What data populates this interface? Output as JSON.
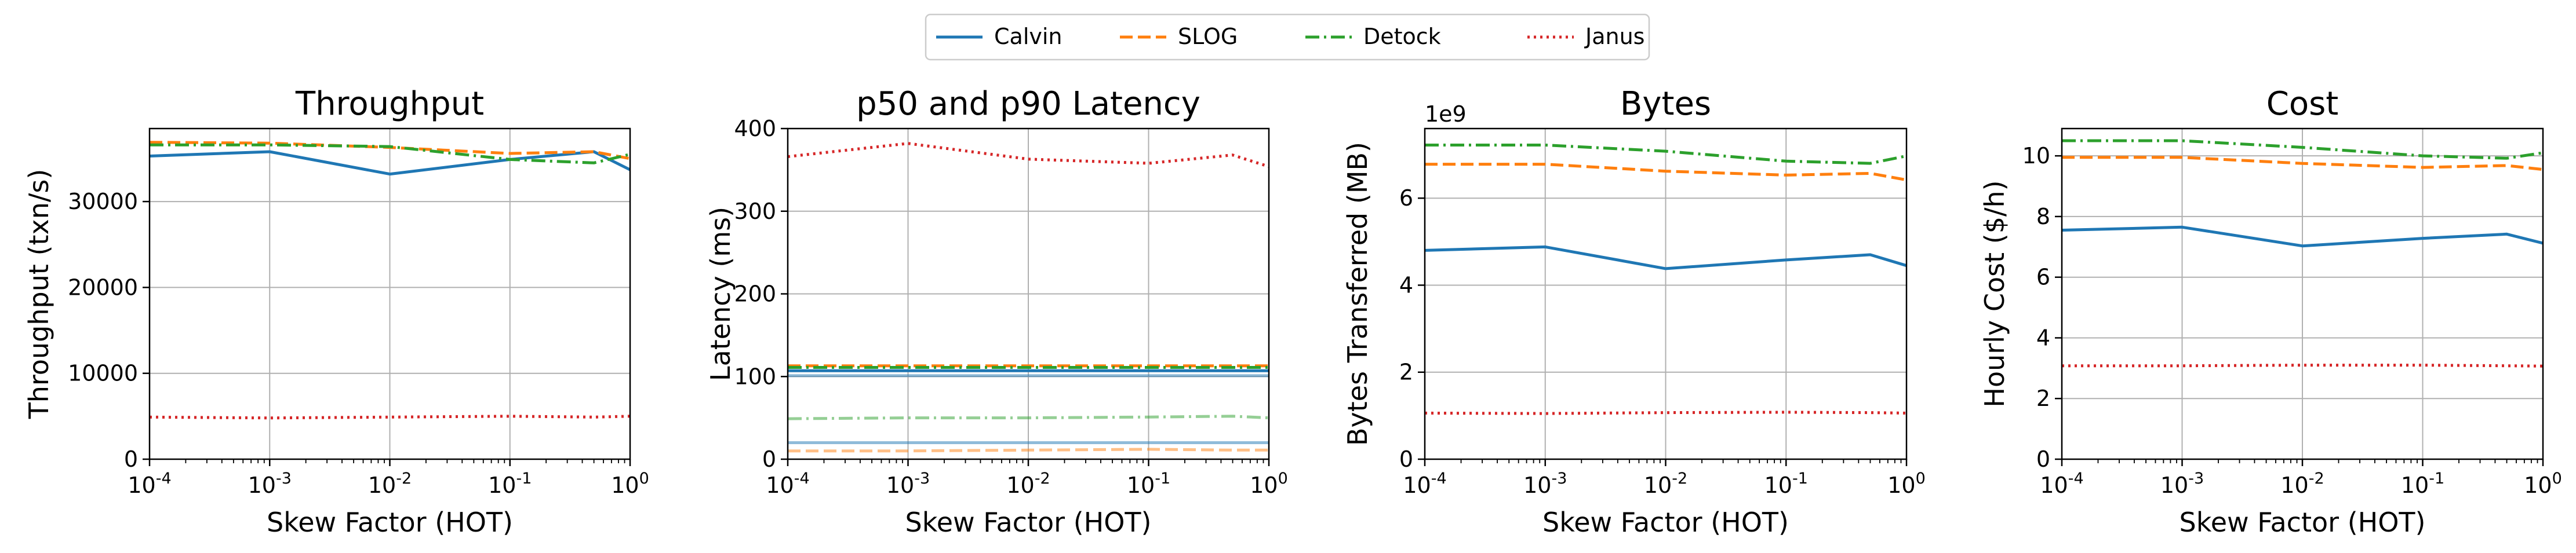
{
  "legend": {
    "placement": "top-center",
    "entries": [
      {
        "name": "Calvin",
        "color": "#1f77b4",
        "dash": "solid"
      },
      {
        "name": "SLOG",
        "color": "#ff7f0e",
        "dash": "dashed"
      },
      {
        "name": "Detock",
        "color": "#2ca02c",
        "dash": "dashdot"
      },
      {
        "name": "Janus",
        "color": "#d62728",
        "dash": "dotted"
      }
    ]
  },
  "chart_data": [
    {
      "type": "line",
      "title": "Throughput",
      "xlabel": "Skew Factor (HOT)",
      "ylabel": "Throughput (txn/s)",
      "xscale": "log",
      "xlim": [
        0.0001,
        1
      ],
      "xticks": [
        "10^-4",
        "10^-3",
        "10^-2",
        "10^-1",
        "10^0"
      ],
      "ylim": [
        0,
        38500
      ],
      "yticks": [
        0,
        10000,
        20000,
        30000
      ],
      "grid": true,
      "x": [
        0.0001,
        0.001,
        0.01,
        0.1,
        0.5,
        1
      ],
      "series": [
        {
          "name": "Calvin",
          "values": [
            35300,
            35800,
            33200,
            34900,
            35800,
            33700
          ]
        },
        {
          "name": "SLOG",
          "values": [
            36900,
            36800,
            36300,
            35600,
            35800,
            35000
          ]
        },
        {
          "name": "Detock",
          "values": [
            36600,
            36600,
            36400,
            34900,
            34500,
            35500
          ]
        },
        {
          "name": "Janus",
          "values": [
            4900,
            4800,
            4900,
            5000,
            4900,
            5000
          ]
        }
      ]
    },
    {
      "type": "line",
      "title": "p50 and p90 Latency",
      "xlabel": "Skew Factor (HOT)",
      "ylabel": "Latency (ms)",
      "xscale": "log",
      "xlim": [
        0.0001,
        1
      ],
      "xticks": [
        "10^-4",
        "10^-3",
        "10^-2",
        "10^-1",
        "10^0"
      ],
      "ylim": [
        0,
        400
      ],
      "yticks": [
        0,
        100,
        200,
        300,
        400
      ],
      "grid": true,
      "x": [
        0.0001,
        0.001,
        0.01,
        0.1,
        0.5,
        1
      ],
      "series": [
        {
          "name": "Calvin",
          "values": [
            107,
            107,
            107,
            107,
            107,
            107
          ]
        },
        {
          "name": "SLOG",
          "values": [
            113,
            113,
            113,
            113,
            113,
            113
          ]
        },
        {
          "name": "Detock",
          "values": [
            111,
            111,
            111,
            111,
            111,
            111
          ]
        },
        {
          "name": "Janus",
          "values": [
            366,
            382,
            363,
            358,
            368,
            354
          ]
        },
        {
          "name": "Calvin",
          "values": [
            20,
            20,
            20,
            20,
            20,
            20
          ]
        },
        {
          "name": "SLOG",
          "values": [
            10,
            10,
            11,
            12,
            11,
            11
          ]
        },
        {
          "name": "Detock",
          "values": [
            49,
            50,
            50,
            51,
            52,
            50
          ]
        },
        {
          "name": "Calvin",
          "values": [
            101,
            101,
            101,
            101,
            101,
            101
          ]
        }
      ]
    },
    {
      "type": "line",
      "title": "Bytes",
      "xlabel": "Skew Factor (HOT)",
      "ylabel": "Bytes Transferred (MB)",
      "offset_label": "1e9",
      "xscale": "log",
      "xlim": [
        0.0001,
        1
      ],
      "xticks": [
        "10^-4",
        "10^-3",
        "10^-2",
        "10^-1",
        "10^0"
      ],
      "ylim": [
        0,
        7.6
      ],
      "yticks": [
        0,
        2,
        4,
        6
      ],
      "grid": true,
      "x": [
        0.0001,
        0.001,
        0.01,
        0.1,
        0.5,
        1
      ],
      "series": [
        {
          "name": "Calvin",
          "values": [
            4.8,
            4.88,
            4.38,
            4.58,
            4.7,
            4.45
          ]
        },
        {
          "name": "SLOG",
          "values": [
            6.78,
            6.78,
            6.62,
            6.53,
            6.57,
            6.42
          ]
        },
        {
          "name": "Detock",
          "values": [
            7.22,
            7.22,
            7.08,
            6.85,
            6.8,
            6.97
          ]
        },
        {
          "name": "Janus",
          "values": [
            1.06,
            1.05,
            1.07,
            1.08,
            1.07,
            1.06
          ]
        }
      ]
    },
    {
      "type": "line",
      "title": "Cost",
      "xlabel": "Skew Factor (HOT)",
      "ylabel": "Hourly Cost ($/h)",
      "xscale": "log",
      "xlim": [
        0.0001,
        1
      ],
      "xticks": [
        "10^-4",
        "10^-3",
        "10^-2",
        "10^-1",
        "10^0"
      ],
      "ylim": [
        0,
        10.9
      ],
      "yticks": [
        0,
        2,
        4,
        6,
        8,
        10
      ],
      "grid": true,
      "x": [
        0.0001,
        0.001,
        0.01,
        0.1,
        0.5,
        1
      ],
      "series": [
        {
          "name": "Calvin",
          "values": [
            7.55,
            7.65,
            7.03,
            7.28,
            7.42,
            7.12
          ]
        },
        {
          "name": "SLOG",
          "values": [
            9.95,
            9.95,
            9.75,
            9.62,
            9.68,
            9.55
          ]
        },
        {
          "name": "Detock",
          "values": [
            10.5,
            10.5,
            10.28,
            10.0,
            9.92,
            10.1
          ]
        },
        {
          "name": "Janus",
          "values": [
            3.08,
            3.08,
            3.1,
            3.1,
            3.08,
            3.07
          ]
        }
      ]
    }
  ]
}
